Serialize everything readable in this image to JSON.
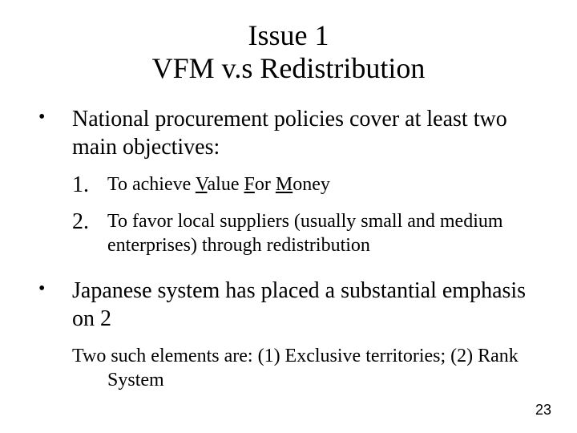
{
  "title": {
    "line1": "Issue 1",
    "line2": "VFM v.s Redistribution"
  },
  "bullets": [
    {
      "text": "National procurement policies cover at least two main objectives:"
    },
    {
      "text": " Japanese system has placed a substantial emphasis on 2"
    }
  ],
  "numbered": [
    {
      "marker": "1.",
      "prefix": "To achieve ",
      "v": "V",
      "alue": "alue ",
      "f": "F",
      "or": "or ",
      "m": "M",
      "oney": "oney"
    },
    {
      "marker": "2.",
      "text": "To favor local suppliers (usually small and medium enterprises) through redistribution"
    }
  ],
  "tertiary": "Two such elements are: (1) Exclusive territories; (2) Rank System",
  "page_number": "23",
  "colors": {
    "background": "#ffffff",
    "text": "#000000"
  },
  "fonts": {
    "body_family": "Times New Roman, serif",
    "title_size_pt": 36,
    "bullet_size_pt": 28,
    "numbered_size_pt": 24,
    "tertiary_size_pt": 24,
    "pagenum_size_pt": 18
  }
}
